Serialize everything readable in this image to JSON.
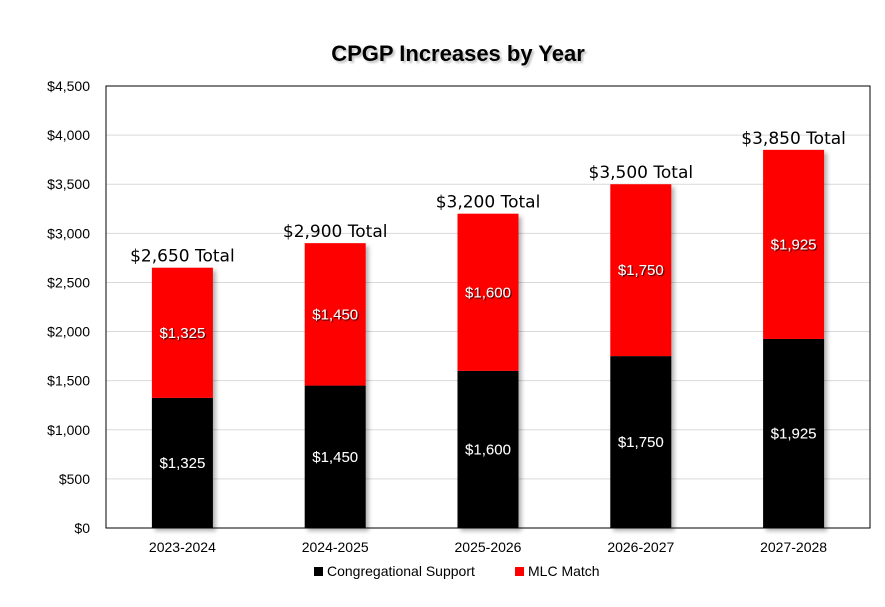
{
  "chart_data": {
    "type": "bar",
    "stacked": true,
    "title": "CPGP Increases by Year",
    "categories": [
      "2023-2024",
      "2024-2025",
      "2025-2026",
      "2026-2027",
      "2027-2028"
    ],
    "series": [
      {
        "name": "Congregational Support",
        "color": "#000000",
        "values": [
          1325,
          1450,
          1600,
          1750,
          1925
        ],
        "labels": [
          "$1,325",
          "$1,450",
          "$1,600",
          "$1,750",
          "$1,925"
        ]
      },
      {
        "name": "MLC Match",
        "color": "#ff0000",
        "values": [
          1325,
          1450,
          1600,
          1750,
          1925
        ],
        "labels": [
          "$1,325",
          "$1,450",
          "$1,600",
          "$1,750",
          "$1,925"
        ]
      }
    ],
    "totals": [
      "$2,650 Total",
      "$2,900 Total",
      "$3,200 Total",
      "$3,500 Total",
      "$3,850 Total"
    ],
    "ylim": [
      0,
      4500
    ],
    "yticks": [
      0,
      500,
      1000,
      1500,
      2000,
      2500,
      3000,
      3500,
      4000,
      4500
    ],
    "ytick_labels": [
      "$0",
      "$500",
      "$1,000",
      "$1,500",
      "$2,000",
      "$2,500",
      "$3,000",
      "$3,500",
      "$4,000",
      "$4,500"
    ],
    "grid": true,
    "legend": "bottom"
  }
}
